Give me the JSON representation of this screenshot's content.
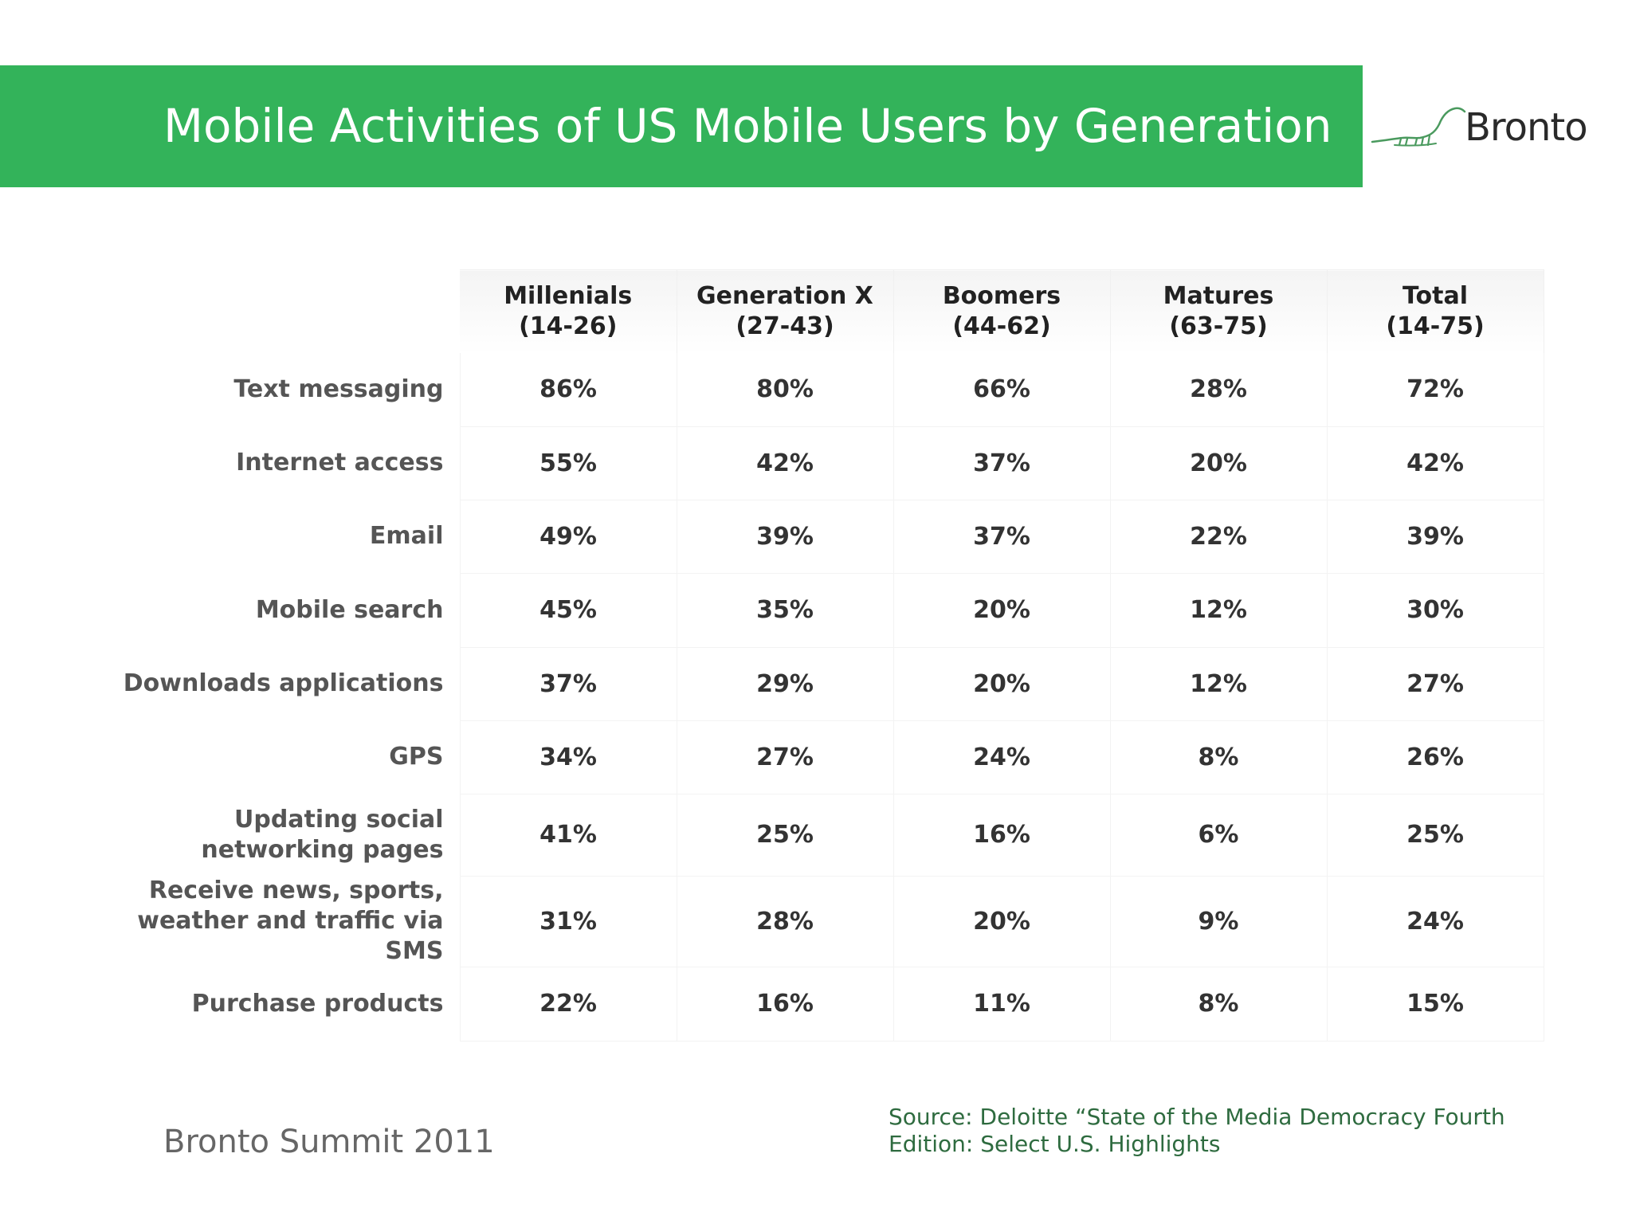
{
  "header": {
    "title": "Mobile Activities of US Mobile Users by Generation",
    "bar_color": "#33b35a"
  },
  "logo": {
    "text": "Bronto",
    "icon": "bronto-dinosaur-logo"
  },
  "table": {
    "columns": [
      {
        "name": "Millenials",
        "range": "(14-26)"
      },
      {
        "name": "Generation X",
        "range": "(27-43)"
      },
      {
        "name": "Boomers",
        "range": "(44-62)"
      },
      {
        "name": "Matures",
        "range": "(63-75)"
      },
      {
        "name": "Total",
        "range": "(14-75)"
      }
    ],
    "rows": [
      {
        "label": "Text messaging",
        "values": [
          "86%",
          "80%",
          "66%",
          "28%",
          "72%"
        ]
      },
      {
        "label": "Internet access",
        "values": [
          "55%",
          "42%",
          "37%",
          "20%",
          "42%"
        ]
      },
      {
        "label": "Email",
        "values": [
          "49%",
          "39%",
          "37%",
          "22%",
          "39%"
        ]
      },
      {
        "label": "Mobile search",
        "values": [
          "45%",
          "35%",
          "20%",
          "12%",
          "30%"
        ]
      },
      {
        "label": "Downloads applications",
        "values": [
          "37%",
          "29%",
          "20%",
          "12%",
          "27%"
        ]
      },
      {
        "label": "GPS",
        "values": [
          "34%",
          "27%",
          "24%",
          "8%",
          "26%"
        ]
      },
      {
        "label": "Updating social networking pages",
        "values": [
          "41%",
          "25%",
          "16%",
          "6%",
          "25%"
        ]
      },
      {
        "label": "Receive news, sports, weather and traffic via SMS",
        "values": [
          "31%",
          "28%",
          "20%",
          "9%",
          "24%"
        ]
      },
      {
        "label": "Purchase products",
        "values": [
          "22%",
          "16%",
          "11%",
          "8%",
          "15%"
        ]
      }
    ]
  },
  "footer": {
    "left": "Bronto Summit 2011",
    "source": "Source: Deloitte “State of the Media Democracy Fourth Edition: Select U.S. Highlights"
  }
}
